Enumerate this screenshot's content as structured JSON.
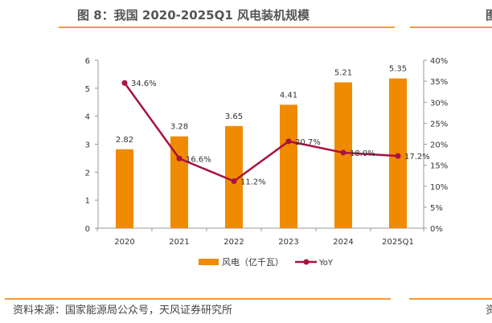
{
  "title": "图 8：我国 2020-2025Q1 风电装机规模",
  "source": "资料来源：国家能源局公众号，天风证券研究所",
  "right_fragments": {
    "title": "图",
    "source": "资"
  },
  "colors": {
    "bar": "#F08A00",
    "line": "#A8123E",
    "rule": "#F39A3A"
  },
  "chart_data": {
    "type": "bar+line",
    "categories": [
      "2020",
      "2021",
      "2022",
      "2023",
      "2024",
      "2025Q1"
    ],
    "series": [
      {
        "name": "风电（亿千瓦）",
        "type": "bar",
        "axis": "left",
        "values": [
          2.82,
          3.28,
          3.65,
          4.41,
          5.21,
          5.35
        ],
        "labels": [
          "2.82",
          "3.28",
          "3.65",
          "4.41",
          "5.21",
          "5.35"
        ]
      },
      {
        "name": "YoY",
        "type": "line",
        "axis": "right",
        "values": [
          34.6,
          16.6,
          11.2,
          20.7,
          18.0,
          17.2
        ],
        "labels": [
          "34.6%",
          "16.6%",
          "11.2%",
          "20.7%",
          "18.0%",
          "17.2%"
        ]
      }
    ],
    "left_axis": {
      "range": [
        0,
        6
      ],
      "ticks": [
        "0",
        "1",
        "2",
        "3",
        "4",
        "5",
        "6"
      ]
    },
    "right_axis": {
      "range": [
        0,
        40
      ],
      "ticks": [
        "0%",
        "5%",
        "10%",
        "15%",
        "20%",
        "25%",
        "30%",
        "35%",
        "40%"
      ]
    },
    "grid": false,
    "legend": "bottom"
  }
}
